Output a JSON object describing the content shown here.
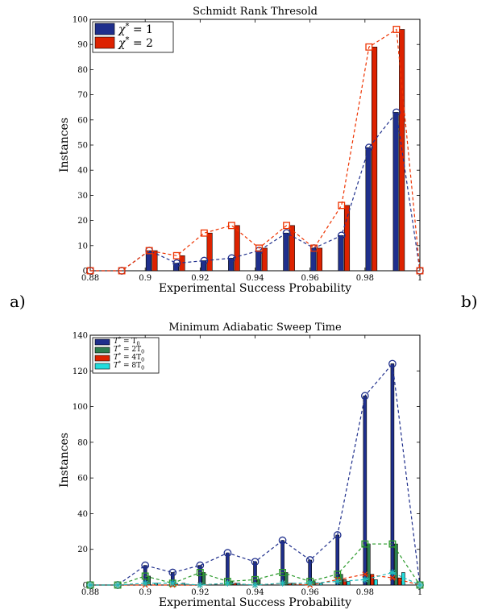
{
  "panel_labels": {
    "a": "a)",
    "b": "b)"
  },
  "chart_data": [
    {
      "type": "bar",
      "title": "Schmidt Rank Thresold",
      "xlabel": "Experimental Success Probability",
      "ylabel": "Instances",
      "xlim": [
        0.88,
        1.0
      ],
      "ylim": [
        0,
        100
      ],
      "x": [
        0.88,
        0.89,
        0.9,
        0.91,
        0.92,
        0.93,
        0.94,
        0.95,
        0.96,
        0.97,
        0.98,
        0.99,
        1.0
      ],
      "x_ticks": [
        0.88,
        0.9,
        0.92,
        0.94,
        0.96,
        0.98,
        1
      ],
      "x_tick_labels": [
        "0.88",
        "0.9",
        "0.92",
        "0.94",
        "0.96",
        "0.98",
        "1"
      ],
      "y_ticks": [
        0,
        10,
        20,
        30,
        40,
        50,
        60,
        70,
        80,
        90,
        100
      ],
      "y_tick_labels": [
        "0",
        "10",
        "20",
        "30",
        "40",
        "50",
        "60",
        "70",
        "80",
        "90",
        "100"
      ],
      "legend_position": "top-left",
      "series": [
        {
          "name": "χ* = 1",
          "color": "#1f2f8c",
          "marker": "circle",
          "line_color": "#1f2f8c",
          "values": [
            0,
            0,
            8,
            3,
            4,
            5,
            8,
            15,
            9,
            14,
            49,
            63,
            0
          ]
        },
        {
          "name": "χ* = 2",
          "color": "#dd2200",
          "marker": "square",
          "line_color": "#ee3300",
          "values": [
            0,
            0,
            8,
            6,
            15,
            18,
            9,
            18,
            9,
            26,
            89,
            96,
            0
          ]
        }
      ],
      "legend_math": [
        {
          "base": "χ",
          "sup": "*",
          "rest": " = 1"
        },
        {
          "base": "χ",
          "sup": "*",
          "rest": " = 2"
        }
      ]
    },
    {
      "type": "bar",
      "title": "Minimum Adiabatic Sweep Time",
      "xlabel": "Experimental Success Probability",
      "ylabel": "Instances",
      "xlim": [
        0.88,
        1.0
      ],
      "ylim": [
        0,
        140
      ],
      "x": [
        0.88,
        0.89,
        0.9,
        0.91,
        0.92,
        0.93,
        0.94,
        0.95,
        0.96,
        0.97,
        0.98,
        0.99,
        1.0
      ],
      "x_ticks": [
        0.88,
        0.9,
        0.92,
        0.94,
        0.96,
        0.98,
        1
      ],
      "x_tick_labels": [
        "0.88",
        "0.9",
        "0.92",
        "0.94",
        "0.96",
        "0.98",
        "1"
      ],
      "y_ticks": [
        0,
        20,
        40,
        60,
        80,
        100,
        120,
        140
      ],
      "y_tick_labels": [
        "0",
        "20",
        "40",
        "60",
        "80",
        "100",
        "120",
        "140"
      ],
      "legend_position": "top-left",
      "series": [
        {
          "name": "T* = T0",
          "color": "#1f2f8c",
          "marker": "circle",
          "line_color": "#1f2f8c",
          "values": [
            0,
            0,
            11,
            7,
            11,
            18,
            13,
            25,
            14,
            28,
            106,
            124,
            0
          ]
        },
        {
          "name": "T* = 2T0",
          "color": "#2e7d4f",
          "marker": "square",
          "line_color": "#2a9a2a",
          "values": [
            0,
            0,
            5,
            1,
            7,
            2,
            3,
            7,
            2,
            6,
            23,
            23,
            0
          ]
        },
        {
          "name": "T* = 4T0",
          "color": "#dd2200",
          "marker": "x",
          "line_color": "#ee3300",
          "values": [
            0,
            0,
            0,
            0,
            0,
            1,
            0,
            1,
            0,
            3,
            6,
            4,
            0
          ]
        },
        {
          "name": "T* = 8T0",
          "color": "#22dddd",
          "marker": "star",
          "line_color": "#22bbbb",
          "values": [
            0,
            0,
            1,
            1,
            0,
            1,
            0,
            1,
            1,
            2,
            3,
            7,
            0
          ]
        }
      ],
      "legend_math": [
        {
          "base": "T",
          "sup": "*",
          "rest": " = T",
          "sub": "0",
          "pre": ""
        },
        {
          "base": "T",
          "sup": "*",
          "rest": " = 2T",
          "sub": "0"
        },
        {
          "base": "T",
          "sup": "*",
          "rest": " = 4T",
          "sub": "0"
        },
        {
          "base": "T",
          "sup": "*",
          "rest": " = 8T",
          "sub": "0"
        }
      ]
    }
  ]
}
